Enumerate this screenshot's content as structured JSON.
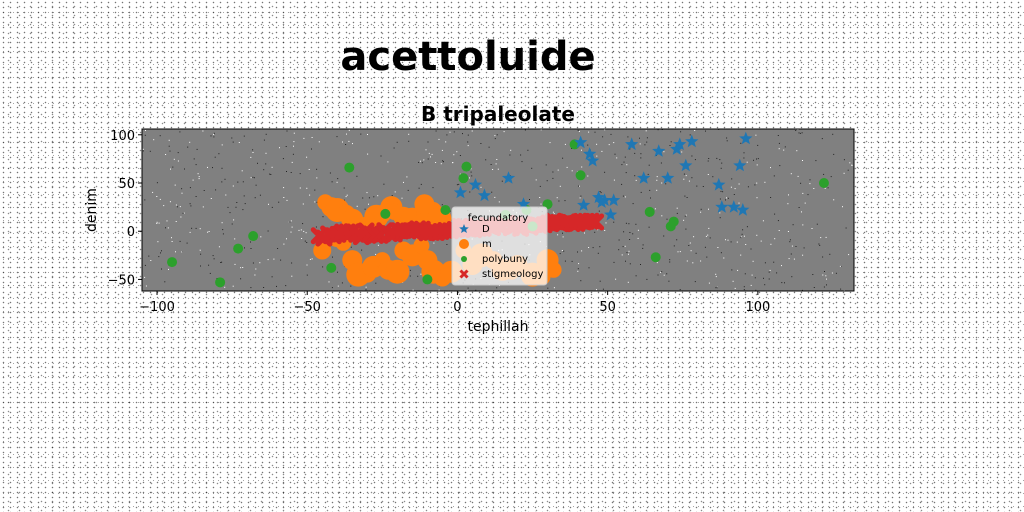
{
  "figure_title": "acettoluide",
  "chart_data": {
    "type": "scatter",
    "title": "B tripaleolate",
    "xlabel": "tephillah",
    "ylabel": "denim",
    "xlim": [
      -105,
      132
    ],
    "ylim": [
      -62,
      106
    ],
    "xticks": [
      -100,
      -50,
      0,
      50,
      100
    ],
    "xtick_labels": [
      "−100",
      "−50",
      "0",
      "50",
      "100"
    ],
    "yticks": [
      -50,
      0,
      50,
      100
    ],
    "ytick_labels": [
      "−50",
      "0",
      "50",
      "100"
    ],
    "grid": false,
    "plot_background": "#808080",
    "legend": {
      "title": "fecundatory",
      "placement": "lower-center"
    },
    "series": [
      {
        "name": "D",
        "marker": "star",
        "color": "#1f77b4",
        "points": [
          [
            41,
            92
          ],
          [
            44,
            80
          ],
          [
            45,
            73
          ],
          [
            49,
            32
          ],
          [
            51,
            17
          ],
          [
            52,
            32
          ],
          [
            58,
            90
          ],
          [
            62,
            55
          ],
          [
            67,
            83
          ],
          [
            70,
            55
          ],
          [
            73,
            85
          ],
          [
            74,
            90
          ],
          [
            76,
            68
          ],
          [
            78,
            93
          ],
          [
            87,
            48
          ],
          [
            88,
            25
          ],
          [
            92,
            25
          ],
          [
            94,
            68
          ],
          [
            95,
            22
          ],
          [
            96,
            96
          ],
          [
            1,
            40
          ],
          [
            6,
            48
          ],
          [
            9,
            37
          ],
          [
            17,
            55
          ],
          [
            22,
            28
          ],
          [
            42,
            27
          ],
          [
            47,
            35
          ],
          [
            48,
            30
          ]
        ]
      },
      {
        "name": "m",
        "marker": "circle",
        "color": "#ff7f0e",
        "points": [
          [
            -44,
            30
          ],
          [
            -42,
            25
          ],
          [
            -40,
            22
          ],
          [
            -37,
            18
          ],
          [
            -35,
            12
          ],
          [
            -33,
            8
          ],
          [
            -30,
            5
          ],
          [
            -27,
            15
          ],
          [
            -25,
            18
          ],
          [
            -22,
            25
          ],
          [
            -21,
            20
          ],
          [
            -18,
            15
          ],
          [
            -15,
            12
          ],
          [
            -12,
            10
          ],
          [
            -10,
            18
          ],
          [
            -8,
            22
          ],
          [
            -11,
            28
          ],
          [
            -6,
            13
          ],
          [
            -45,
            -20
          ],
          [
            -40,
            -5
          ],
          [
            -38,
            -12
          ],
          [
            -35,
            -30
          ],
          [
            -33,
            -45
          ],
          [
            -30,
            -44
          ],
          [
            -28,
            -37
          ],
          [
            -25,
            -30
          ],
          [
            -23,
            -40
          ],
          [
            -20,
            -42
          ],
          [
            -18,
            -20
          ],
          [
            -15,
            -25
          ],
          [
            -12,
            -15
          ],
          [
            -10,
            -30
          ],
          [
            -8,
            -42
          ],
          [
            -5,
            -48
          ],
          [
            -2,
            -42
          ],
          [
            2,
            -20
          ],
          [
            5,
            -35
          ],
          [
            8,
            -25
          ],
          [
            12,
            -30
          ],
          [
            15,
            -40
          ],
          [
            18,
            -42
          ],
          [
            20,
            -35
          ],
          [
            25,
            -45
          ],
          [
            28,
            -47
          ],
          [
            30,
            -30
          ],
          [
            32,
            -40
          ]
        ]
      },
      {
        "name": "polybuny",
        "marker": "circle",
        "color": "#2ca02c",
        "points": [
          [
            -95,
            -32
          ],
          [
            -79,
            -53
          ],
          [
            -73,
            -18
          ],
          [
            -68,
            -5
          ],
          [
            -42,
            -38
          ],
          [
            -36,
            66
          ],
          [
            -24,
            18
          ],
          [
            -10,
            -50
          ],
          [
            -4,
            22
          ],
          [
            2,
            55
          ],
          [
            3,
            67
          ],
          [
            16,
            17
          ],
          [
            23,
            22
          ],
          [
            25,
            5
          ],
          [
            30,
            28
          ],
          [
            39,
            90
          ],
          [
            41,
            58
          ],
          [
            64,
            20
          ],
          [
            66,
            -27
          ],
          [
            71,
            5
          ],
          [
            72,
            10
          ],
          [
            122,
            50
          ]
        ]
      },
      {
        "name": "stigmeology",
        "marker": "x",
        "color": "#d62728",
        "x_range": [
          -46,
          46
        ],
        "y_range": [
          -5,
          10
        ],
        "count": 60
      }
    ]
  }
}
